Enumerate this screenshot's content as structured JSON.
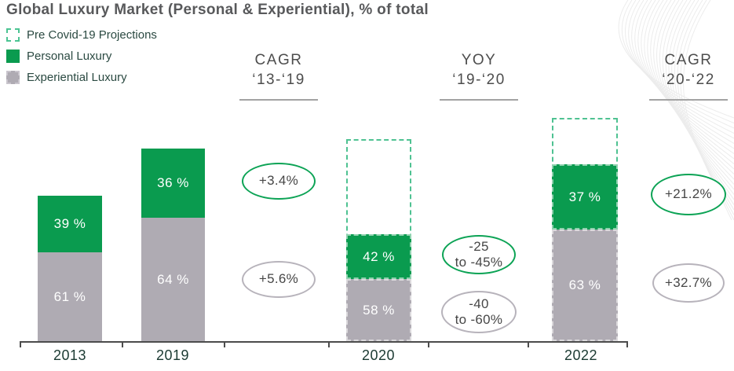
{
  "title": "Global Luxury Market (Personal & Experiential), % of total",
  "legend": {
    "items": [
      {
        "label": "Pre Covid-19 Projections",
        "swatch": "dashed-green-outline"
      },
      {
        "label": "Personal Luxury",
        "swatch": "solid-green"
      },
      {
        "label": "Experiential Luxury",
        "swatch": "gray-dashed-border"
      }
    ]
  },
  "colors": {
    "personal_green": "#0a9b4f",
    "projection_dash_green": "#4fc292",
    "experiential_gray": "#afabb3",
    "oval_green_border": "#0ca355",
    "oval_gray_border": "#b7b3bb",
    "title_gray": "#58595b",
    "year_label_dark": "#1b3a32"
  },
  "chart_data": {
    "type": "bar",
    "stacked": true,
    "title": "Global Luxury Market (Personal & Experiential), % of total",
    "categories": [
      "2013",
      "2019",
      "2020",
      "2022"
    ],
    "series": [
      {
        "name": "Personal Luxury",
        "values": [
          39,
          36,
          42,
          37
        ],
        "color": "#0a9b4f"
      },
      {
        "name": "Experiential Luxury",
        "values": [
          61,
          64,
          58,
          63
        ],
        "color": "#afabb3"
      }
    ],
    "segment_labels": [
      [
        "39 %",
        "61 %"
      ],
      [
        "36 %",
        "64 %"
      ],
      [
        "42 %",
        "58 %"
      ],
      [
        "37 %",
        "63 %"
      ]
    ],
    "pre_covid_projections": {
      "applies_to": [
        "2020",
        "2022"
      ],
      "style": "dashed-green-outline",
      "relative_total_height_vs_2019_pct": {
        "2020": 105,
        "2022": 116
      }
    },
    "relative_total_height_vs_2019_pct": {
      "2013": 76,
      "2019": 100,
      "2020": 56,
      "2022": 92
    },
    "legend_position": "top-left",
    "grid": false
  },
  "analysis": {
    "columns": [
      {
        "id": "cagr-13-19",
        "header_line1": "CAGR",
        "header_line2": "‘13-‘19",
        "ovals": [
          {
            "id": "personal",
            "style": "green",
            "lines": [
              "+3.4%"
            ]
          },
          {
            "id": "experiential",
            "style": "gray",
            "lines": [
              "+5.6%"
            ]
          }
        ]
      },
      {
        "id": "yoy-19-20",
        "header_line1": "YOY",
        "header_line2": "‘19-‘20",
        "ovals": [
          {
            "id": "personal",
            "style": "green",
            "lines": [
              "-25",
              "to -45%"
            ]
          },
          {
            "id": "experiential",
            "style": "gray",
            "lines": [
              "-40",
              "to -60%"
            ]
          }
        ]
      },
      {
        "id": "cagr-20-22",
        "header_line1": "CAGR",
        "header_line2": "‘20-‘22",
        "ovals": [
          {
            "id": "personal",
            "style": "green",
            "lines": [
              "+21.2%"
            ]
          },
          {
            "id": "experiential",
            "style": "gray",
            "lines": [
              "+32.7%"
            ]
          }
        ]
      }
    ]
  },
  "x_axis": {
    "labels": [
      "2013",
      "2019",
      "2020",
      "2022"
    ]
  }
}
